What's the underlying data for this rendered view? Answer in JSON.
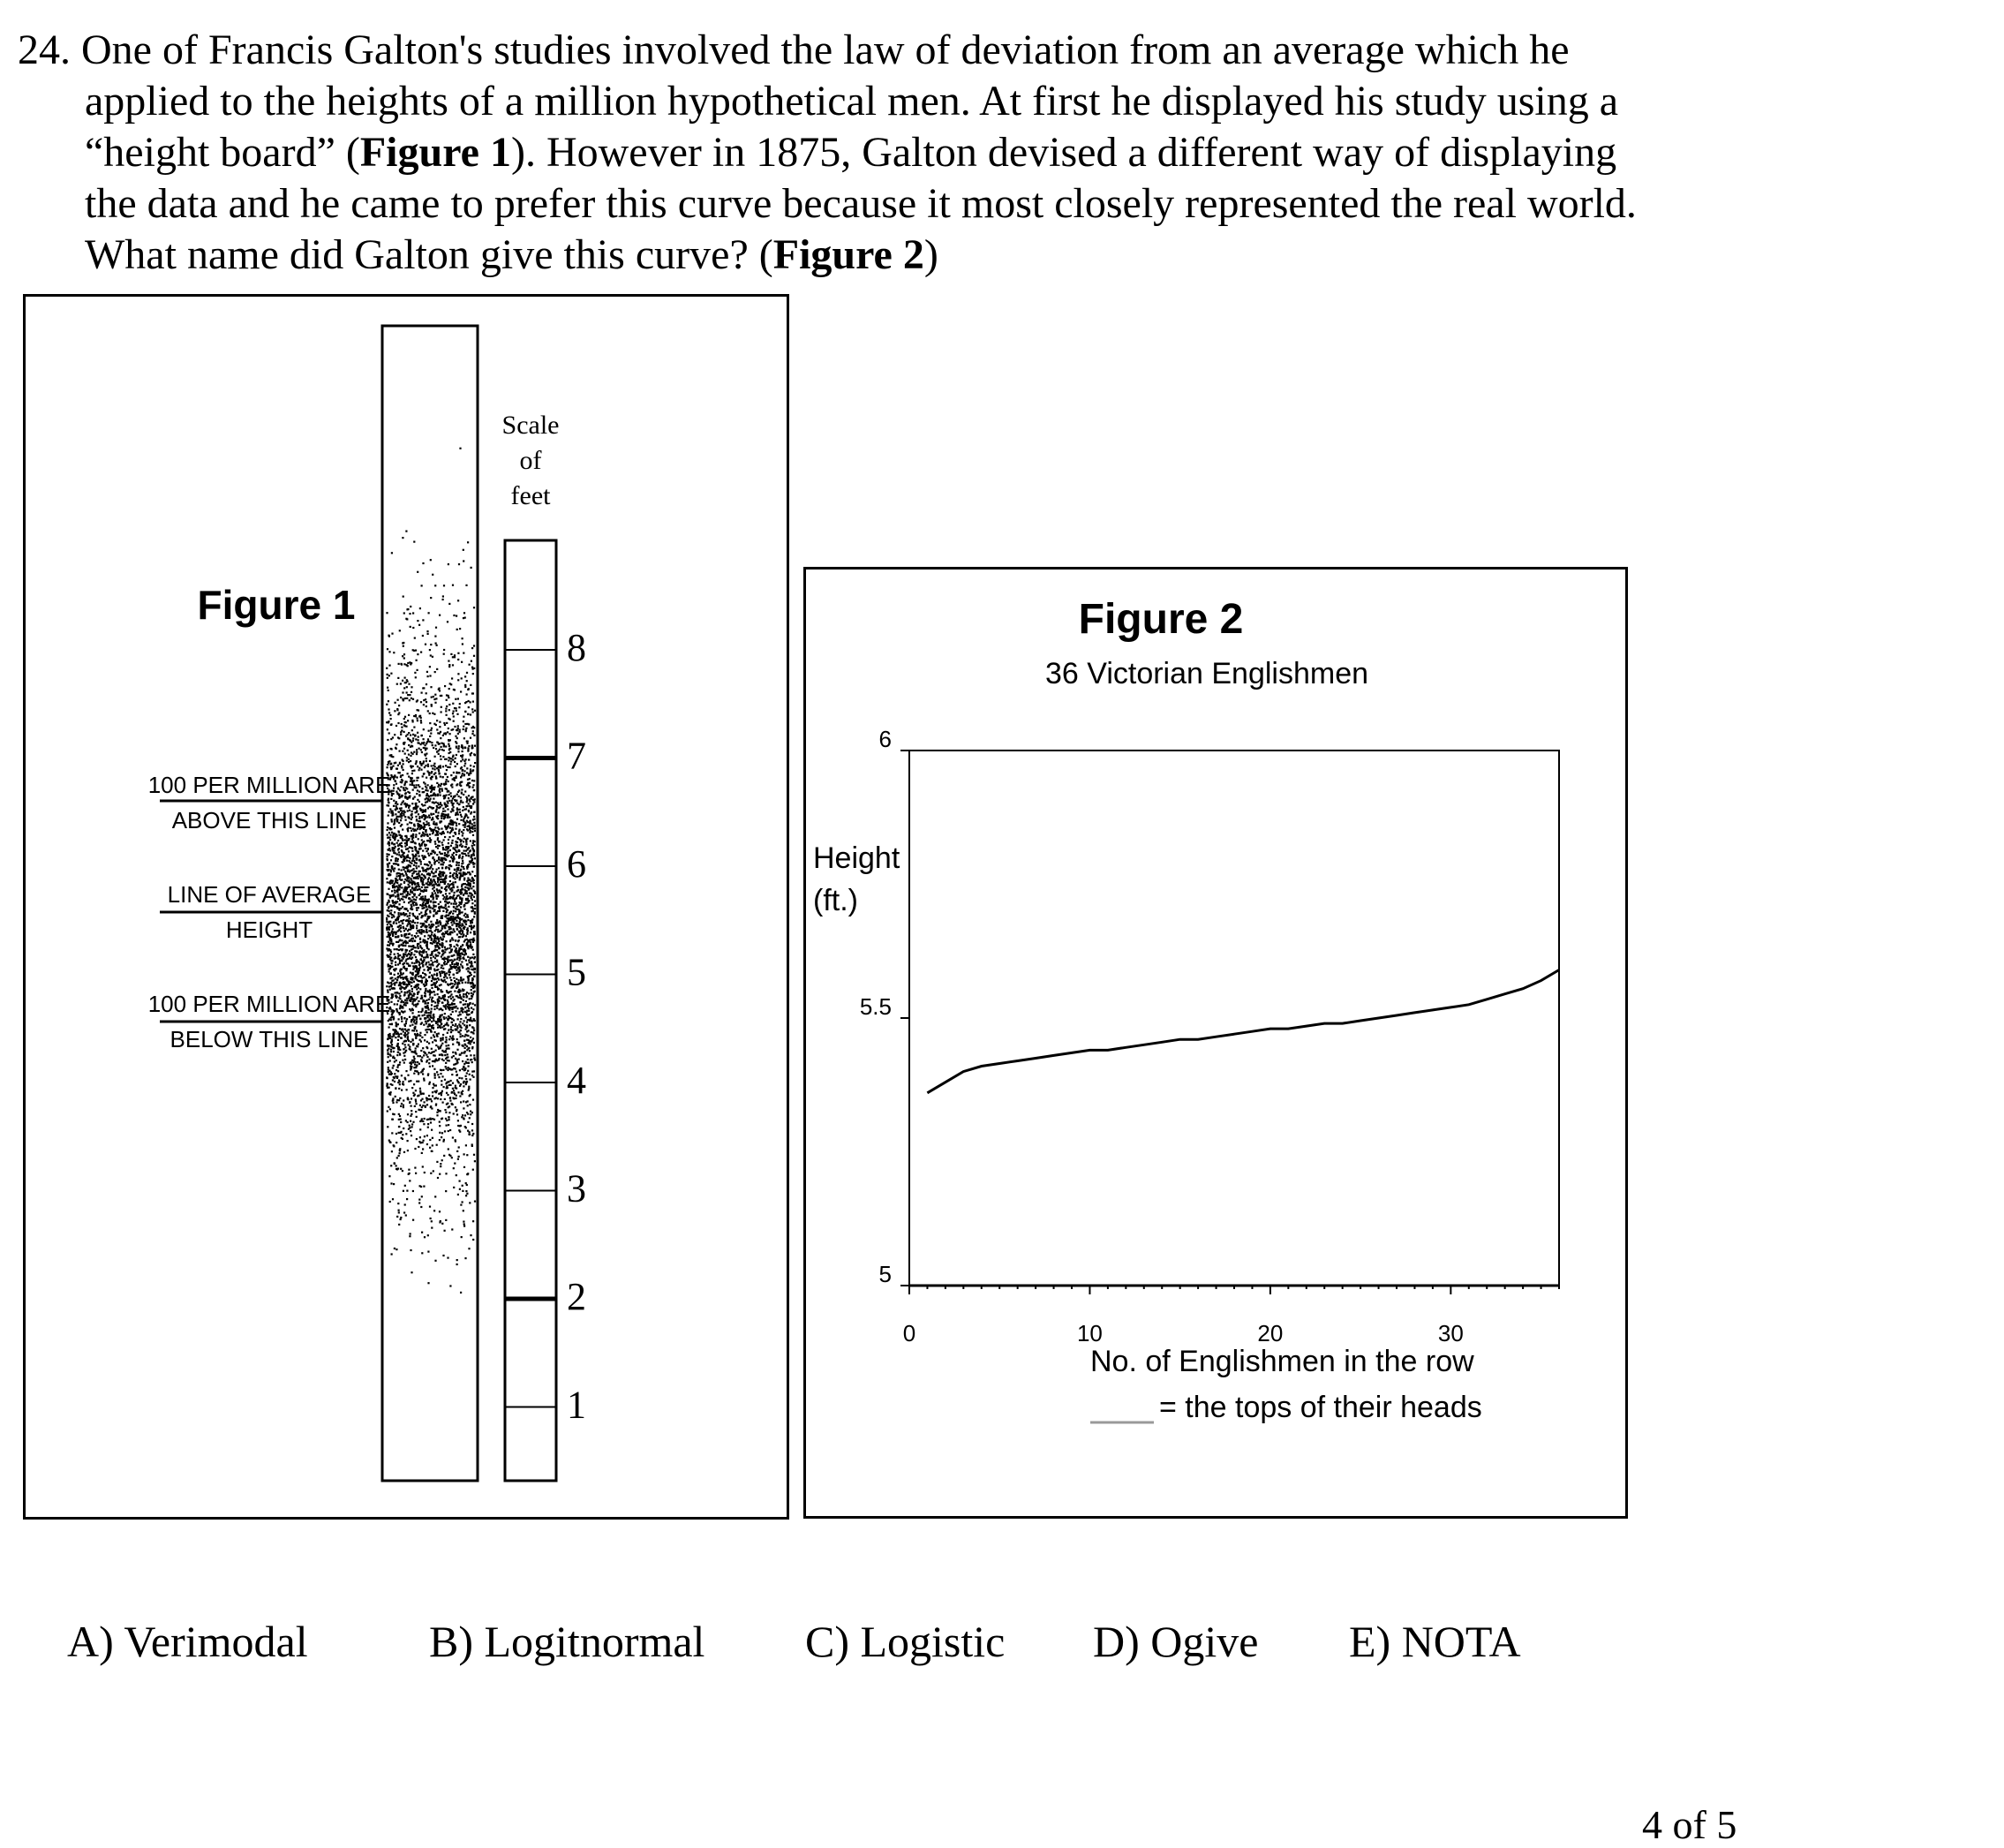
{
  "question": {
    "number": "24.",
    "lines": [
      "One of Francis Galton's studies involved the law of deviation from an average which he",
      "applied to the heights of a million hypothetical men. At first he displayed his study using a",
      "“height board” (",
      "Figure 1",
      "). However in 1875, Galton devised a different way of displaying",
      "the data and he came to prefer this curve because it most closely represented the real world.",
      "What name did Galton give this curve? (",
      "Figure 2",
      ")"
    ]
  },
  "figure1": {
    "title": "Figure 1",
    "scale_label": [
      "Scale",
      "of",
      "feet"
    ],
    "scale_ticks": [
      "8",
      "7",
      "6",
      "5",
      "4",
      "3",
      "2",
      "1"
    ],
    "label_above": [
      "100 PER MILLION ARE",
      "ABOVE THIS LINE"
    ],
    "label_average": [
      "LINE OF AVERAGE",
      "HEIGHT"
    ],
    "label_below": [
      "100 PER MILLION ARE",
      "BELOW THIS LINE"
    ]
  },
  "figure2": {
    "title": "Figure 2",
    "subtitle": "36 Victorian Englishmen",
    "ylabel": [
      "Height",
      "(ft.)"
    ],
    "xlabel": "No. of Englishmen in the row",
    "legend": "= the tops of their heads",
    "y_ticks": [
      "6",
      "5.5",
      "5"
    ],
    "x_ticks": [
      "0",
      "10",
      "20",
      "30"
    ]
  },
  "chart_data": {
    "type": "line",
    "title": "Figure 2",
    "subtitle": "36 Victorian Englishmen",
    "xlabel": "No. of Englishmen in the row",
    "ylabel": "Height (ft.)",
    "xlim": [
      0,
      36
    ],
    "ylim": [
      5,
      6
    ],
    "series": [
      {
        "name": "= the tops of their heads",
        "x": [
          1,
          2,
          3,
          4,
          5,
          6,
          7,
          8,
          9,
          10,
          11,
          12,
          13,
          14,
          15,
          16,
          17,
          18,
          19,
          20,
          21,
          22,
          23,
          24,
          25,
          26,
          27,
          28,
          29,
          30,
          31,
          32,
          33,
          34,
          35,
          36
        ],
        "values": [
          5.36,
          5.38,
          5.4,
          5.41,
          5.415,
          5.42,
          5.425,
          5.43,
          5.435,
          5.44,
          5.44,
          5.445,
          5.45,
          5.455,
          5.46,
          5.46,
          5.465,
          5.47,
          5.475,
          5.48,
          5.48,
          5.485,
          5.49,
          5.49,
          5.495,
          5.5,
          5.505,
          5.51,
          5.515,
          5.52,
          5.525,
          5.535,
          5.545,
          5.555,
          5.57,
          5.59
        ]
      }
    ]
  },
  "choices": [
    "A) Verimodal",
    "B) Logitnormal",
    "C) Logistic",
    "D) Ogive",
    "E) NOTA"
  ],
  "page": "4 of 5"
}
